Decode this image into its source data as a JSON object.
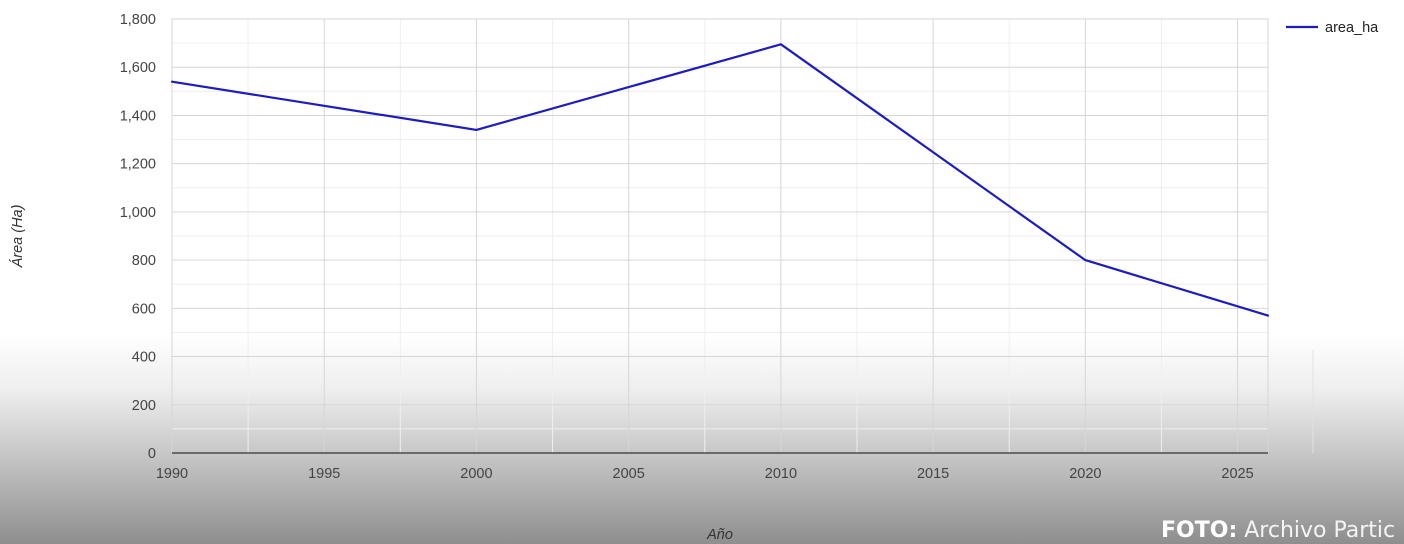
{
  "chart_data": {
    "type": "line",
    "title": "",
    "xlabel": "Año",
    "ylabel": "Área (Ha)",
    "x_ticks": [
      "1990",
      "1995",
      "2000",
      "2005",
      "2010",
      "2015",
      "2020",
      "2025"
    ],
    "y_ticks": [
      "0",
      "200",
      "400",
      "600",
      "800",
      "1,000",
      "1,200",
      "1,400",
      "1,600",
      "1,800"
    ],
    "xlim": [
      1990,
      2026
    ],
    "ylim": [
      0,
      1800
    ],
    "grid": true,
    "legend_position": "top-right",
    "series": [
      {
        "name": "area_ha",
        "color": "#1c1cc0",
        "x": [
          1990,
          2000,
          2010,
          2020,
          2026
        ],
        "y": [
          1540,
          1340,
          1695,
          800,
          570
        ]
      }
    ]
  },
  "photo_credit": {
    "label": "FOTO:",
    "source": "Archivo Partic"
  }
}
